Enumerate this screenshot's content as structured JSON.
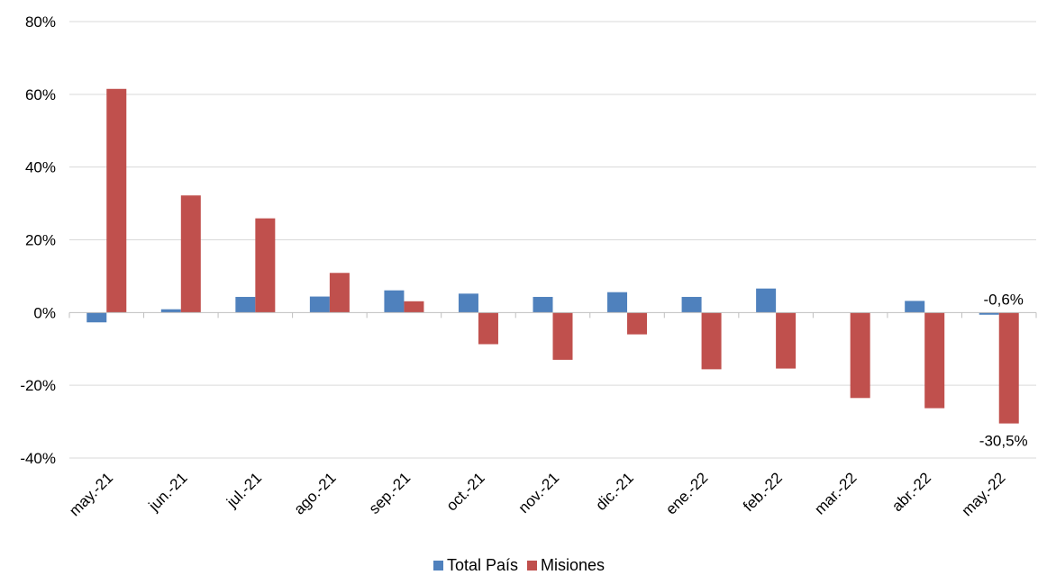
{
  "chart_data": {
    "type": "bar",
    "categories": [
      "may.-21",
      "jun.-21",
      "jul.-21",
      "ago.-21",
      "sep.-21",
      "oct.-21",
      "nov.-21",
      "dic.-21",
      "ene.-22",
      "feb.-22",
      "mar.-22",
      "abr.-22",
      "may.-22"
    ],
    "series": [
      {
        "name": "Total País",
        "color": "#4F81BD",
        "values": [
          -2.7,
          0.9,
          4.3,
          4.4,
          6.1,
          5.2,
          4.3,
          5.6,
          4.3,
          6.6,
          0.0,
          3.2,
          -0.6
        ]
      },
      {
        "name": "Misiones",
        "color": "#C0504D",
        "values": [
          61.5,
          32.2,
          25.9,
          10.9,
          3.1,
          -8.7,
          -13.0,
          -6.0,
          -15.6,
          -15.4,
          -23.5,
          -26.3,
          -30.5
        ]
      }
    ],
    "ylim": [
      -40,
      80
    ],
    "yticks": [
      "-40%",
      "-20%",
      "0%",
      "20%",
      "40%",
      "60%",
      "80%"
    ],
    "ytick_values": [
      -40,
      -20,
      0,
      20,
      40,
      60,
      80
    ],
    "data_labels": [
      {
        "series": 0,
        "index": 12,
        "text": "-0,6%"
      },
      {
        "series": 1,
        "index": 12,
        "text": "-30,5%"
      }
    ],
    "legend": {
      "position": "bottom",
      "labels": [
        "Total País",
        "Misiones"
      ]
    },
    "grid": true
  }
}
